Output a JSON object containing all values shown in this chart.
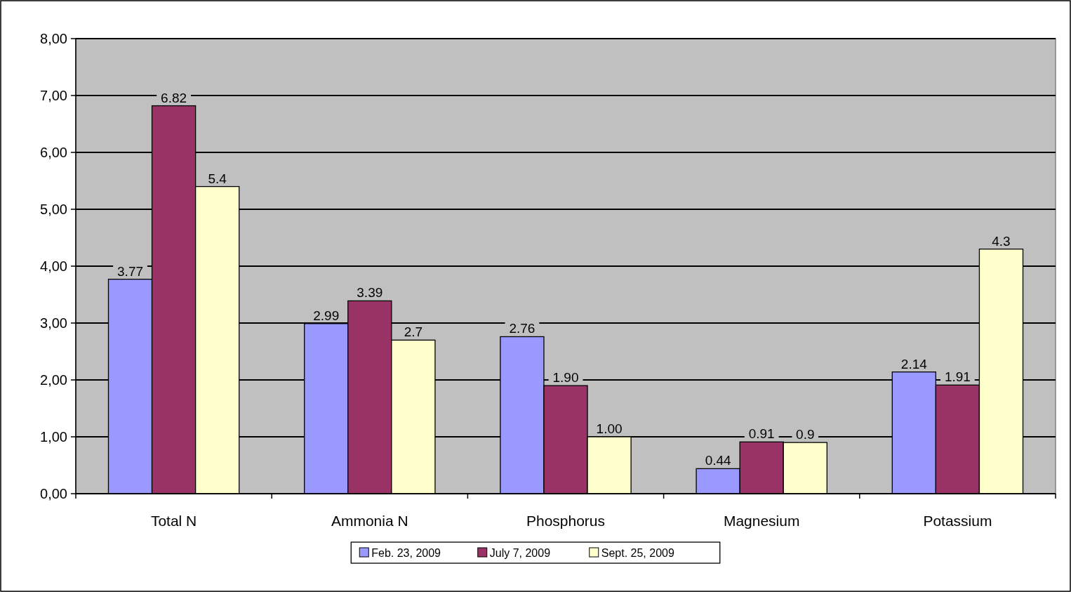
{
  "chart_data": {
    "type": "bar",
    "categories": [
      "Total N",
      "Ammonia N",
      "Phosphorus",
      "Magnesium",
      "Potassium"
    ],
    "series": [
      {
        "name": "Feb. 23, 2009",
        "color": "#9999ff",
        "values": [
          3.77,
          2.99,
          2.76,
          0.44,
          2.14
        ],
        "value_labels": [
          "3.77",
          "2.99",
          "2.76",
          "0.44",
          "2.14"
        ]
      },
      {
        "name": "July 7, 2009",
        "color": "#993366",
        "values": [
          6.82,
          3.39,
          1.9,
          0.91,
          1.91
        ],
        "value_labels": [
          "6.82",
          "3.39",
          "1.90",
          "0.91",
          "1.91"
        ]
      },
      {
        "name": "Sept. 25, 2009",
        "color": "#ffffcc",
        "values": [
          5.4,
          2.7,
          1.0,
          0.9,
          4.3
        ],
        "value_labels": [
          "5.4",
          "2.7",
          "1.00",
          "0.9",
          "4.3"
        ]
      }
    ],
    "ylim": [
      0,
      8
    ],
    "yticks": [
      {
        "value": 0,
        "label": "0,00"
      },
      {
        "value": 1,
        "label": "1,00"
      },
      {
        "value": 2,
        "label": "2,00"
      },
      {
        "value": 3,
        "label": "3,00"
      },
      {
        "value": 4,
        "label": "4,00"
      },
      {
        "value": 5,
        "label": "5,00"
      },
      {
        "value": 6,
        "label": "6,00"
      },
      {
        "value": 7,
        "label": "7,00"
      },
      {
        "value": 8,
        "label": "8,00"
      }
    ],
    "grid": "y",
    "legend": "bottom"
  }
}
